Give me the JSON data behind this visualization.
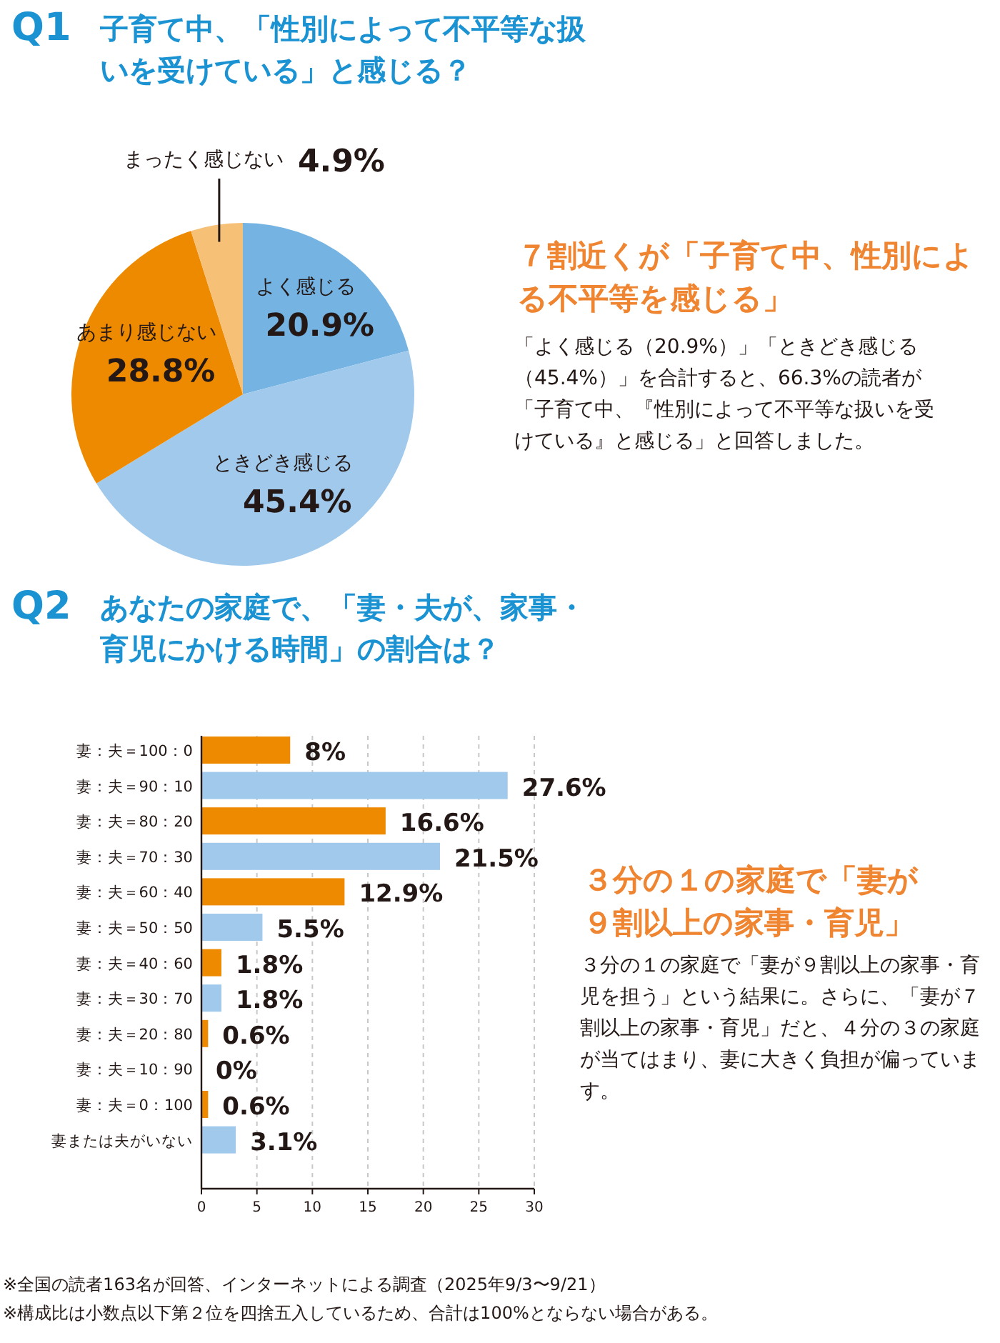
{
  "chart_data": [
    {
      "type": "pie",
      "title": "子育て中、「性別によって不平等な扱いを受けている」と感じる？",
      "categories": [
        "よく感じる",
        "ときどき感じる",
        "あまり感じない",
        "まったく感じない"
      ],
      "values": [
        20.9,
        45.4,
        28.8,
        4.9
      ],
      "colors": [
        "#74b3e2",
        "#a0c9ec",
        "#ee8a00",
        "#f7c077"
      ],
      "value_labels": [
        "20.9%",
        "45.4%",
        "28.8%",
        "4.9%"
      ],
      "annotations": [
        "Q1",
        "７割近くが「子育て中、性別による不平等を感じる」",
        "「よく感じる（20.9%）」「ときどき感じる（45.4%）」を合計すると、66.3%の読者が「子育て中、『性別によって不平等な扱いを受けている』と感じる」と回答しました。"
      ]
    },
    {
      "type": "bar",
      "orientation": "horizontal",
      "title": "あなたの家庭で、「妻・夫が、家事・育児にかける時間」の割合は？",
      "categories": [
        "妻：夫＝100：0",
        "妻：夫＝90：10",
        "妻：夫＝80：20",
        "妻：夫＝70：30",
        "妻：夫＝60：40",
        "妻：夫＝50：50",
        "妻：夫＝40：60",
        "妻：夫＝30：70",
        "妻：夫＝20：80",
        "妻：夫＝10：90",
        "妻：夫＝0：100",
        "妻または夫がいない"
      ],
      "values": [
        8,
        27.6,
        16.6,
        21.5,
        12.9,
        5.5,
        1.8,
        1.8,
        0.6,
        0,
        0.6,
        3.1
      ],
      "colors": [
        "#ee8a00",
        "#a0c9ec",
        "#ee8a00",
        "#a0c9ec",
        "#ee8a00",
        "#a0c9ec",
        "#ee8a00",
        "#a0c9ec",
        "#ee8a00",
        "#a0c9ec",
        "#ee8a00",
        "#a0c9ec"
      ],
      "value_labels": [
        "8%",
        "27.6%",
        "16.6%",
        "21.5%",
        "12.9%",
        "5.5%",
        "1.8%",
        "1.8%",
        "0.6%",
        "0%",
        "0.6%",
        "3.1%"
      ],
      "xlim": [
        0,
        30
      ],
      "xticks": [
        0,
        5,
        10,
        15,
        20,
        25,
        30
      ],
      "grid": "x",
      "annotations": [
        "Q2",
        "３分の１の家庭で「妻が９割以上の家事・育児」",
        "３分の１の家庭で「妻が９割以上の家事・育児を担う」という結果に。さらに、「妻が７割以上の家事・育児」だと、４分の３の家庭が当てはまり、妻に大きく負担が偏っています。",
        "※全国の読者163名が回答、インターネットによる調査（2025年9/3〜9/21）",
        "※構成比は小数点以下第２位を四捨五入しているため、合計は100%とならない場合がある。"
      ]
    }
  ]
}
